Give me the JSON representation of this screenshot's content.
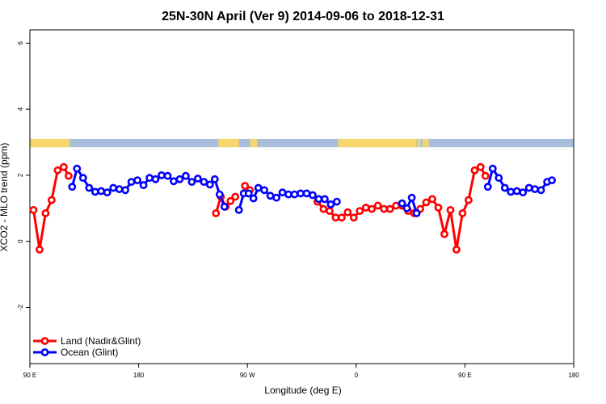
{
  "chart_data": {
    "type": "line",
    "title": "25N-30N April (Ver 9)   2014-09-06 to 2018-12-31",
    "xlabel": "Longitude (deg E)",
    "ylabel": "XCO2 - MLO trend (ppm)",
    "xlim": [
      90,
      540
    ],
    "ylim": [
      -3.7,
      6.4
    ],
    "x_ticks": [
      {
        "value": 90,
        "label": "90 E"
      },
      {
        "value": 180,
        "label": "180"
      },
      {
        "value": 270,
        "label": "90 W"
      },
      {
        "value": 360,
        "label": "0"
      },
      {
        "value": 450,
        "label": "90 E"
      },
      {
        "value": 540,
        "label": "180"
      }
    ],
    "y_ticks": [
      {
        "value": -2,
        "label": "-2"
      },
      {
        "value": 0,
        "label": "0"
      },
      {
        "value": 2,
        "label": "2"
      },
      {
        "value": 4,
        "label": "4"
      },
      {
        "value": 6,
        "label": "6"
      }
    ],
    "legend": {
      "placement": "bottom-left",
      "entries": [
        {
          "name": "Land (Nadir&Glint)",
          "color": "#ff0000"
        },
        {
          "name": "Ocean (Glint)",
          "color": "#0000ff"
        }
      ]
    },
    "land_ocean_band": {
      "y_range": [
        2.85,
        3.1
      ],
      "land_color": "#f5d76e",
      "ocean_color": "#a9bedc",
      "land_segments": [
        [
          90,
          123
        ],
        [
          246,
          263
        ],
        [
          272,
          278
        ],
        [
          345,
          410
        ],
        [
          411,
          413
        ],
        [
          415,
          420
        ]
      ]
    },
    "series": [
      {
        "name": "Land (Nadir&Glint)",
        "color": "#ff0000",
        "segments": [
          [
            [
              93,
              0.95
            ],
            [
              98,
              -0.25
            ],
            [
              103,
              0.85
            ],
            [
              108,
              1.25
            ],
            [
              113,
              2.15
            ],
            [
              118,
              2.25
            ],
            [
              122,
              1.98
            ]
          ],
          [
            [
              244,
              0.85
            ],
            [
              248,
              1.35
            ],
            [
              252,
              1.05
            ],
            [
              256,
              1.22
            ],
            [
              260,
              1.35
            ]
          ],
          [
            [
              268,
              1.68
            ],
            [
              272,
              1.55
            ]
          ],
          [
            [
              328,
              1.2
            ],
            [
              333,
              0.98
            ],
            [
              338,
              0.92
            ],
            [
              343,
              0.72
            ],
            [
              348,
              0.72
            ],
            [
              353,
              0.88
            ],
            [
              358,
              0.72
            ],
            [
              363,
              0.92
            ],
            [
              368,
              1.02
            ],
            [
              373,
              0.98
            ],
            [
              378,
              1.08
            ],
            [
              383,
              0.98
            ],
            [
              388,
              0.98
            ],
            [
              393,
              1.08
            ],
            [
              398,
              1.08
            ],
            [
              403,
              0.92
            ],
            [
              408,
              0.85
            ],
            [
              413,
              0.98
            ],
            [
              418,
              1.18
            ],
            [
              423,
              1.28
            ],
            [
              428,
              1.02
            ],
            [
              433,
              0.22
            ],
            [
              438,
              0.95
            ],
            [
              443,
              -0.25
            ],
            [
              448,
              0.85
            ],
            [
              453,
              1.25
            ],
            [
              458,
              2.15
            ],
            [
              463,
              2.25
            ],
            [
              467,
              1.98
            ]
          ]
        ]
      },
      {
        "name": "Ocean (Glint)",
        "color": "#0000ff",
        "segments": [
          [
            [
              125,
              1.65
            ],
            [
              129,
              2.2
            ],
            [
              134,
              1.92
            ],
            [
              139,
              1.62
            ],
            [
              144,
              1.5
            ],
            [
              149,
              1.52
            ],
            [
              154,
              1.48
            ],
            [
              159,
              1.62
            ],
            [
              164,
              1.58
            ],
            [
              169,
              1.55
            ],
            [
              174,
              1.8
            ],
            [
              179,
              1.85
            ],
            [
              184,
              1.7
            ],
            [
              189,
              1.92
            ],
            [
              194,
              1.88
            ],
            [
              199,
              2.0
            ],
            [
              204,
              1.98
            ],
            [
              209,
              1.82
            ],
            [
              214,
              1.88
            ],
            [
              219,
              1.98
            ],
            [
              224,
              1.8
            ],
            [
              229,
              1.9
            ],
            [
              234,
              1.8
            ],
            [
              239,
              1.72
            ],
            [
              243,
              1.88
            ],
            [
              247,
              1.42
            ],
            [
              251,
              1.05
            ]
          ],
          [
            [
              263,
              0.95
            ],
            [
              267,
              1.45
            ],
            [
              271,
              1.45
            ],
            [
              275,
              1.3
            ],
            [
              279,
              1.62
            ],
            [
              284,
              1.55
            ],
            [
              289,
              1.38
            ],
            [
              294,
              1.32
            ],
            [
              299,
              1.48
            ],
            [
              304,
              1.42
            ],
            [
              309,
              1.42
            ],
            [
              314,
              1.45
            ],
            [
              319,
              1.45
            ],
            [
              324,
              1.4
            ],
            [
              329,
              1.28
            ],
            [
              334,
              1.28
            ],
            [
              339,
              1.12
            ],
            [
              344,
              1.2
            ]
          ],
          [
            [
              398,
              1.15
            ],
            [
              402,
              1.0
            ],
            [
              406,
              1.32
            ],
            [
              410,
              0.85
            ]
          ],
          [
            [
              469,
              1.65
            ],
            [
              473,
              2.2
            ],
            [
              478,
              1.92
            ],
            [
              483,
              1.62
            ],
            [
              488,
              1.5
            ],
            [
              493,
              1.52
            ],
            [
              498,
              1.48
            ],
            [
              503,
              1.62
            ],
            [
              508,
              1.58
            ],
            [
              513,
              1.55
            ],
            [
              518,
              1.8
            ],
            [
              522,
              1.85
            ]
          ]
        ]
      }
    ]
  }
}
